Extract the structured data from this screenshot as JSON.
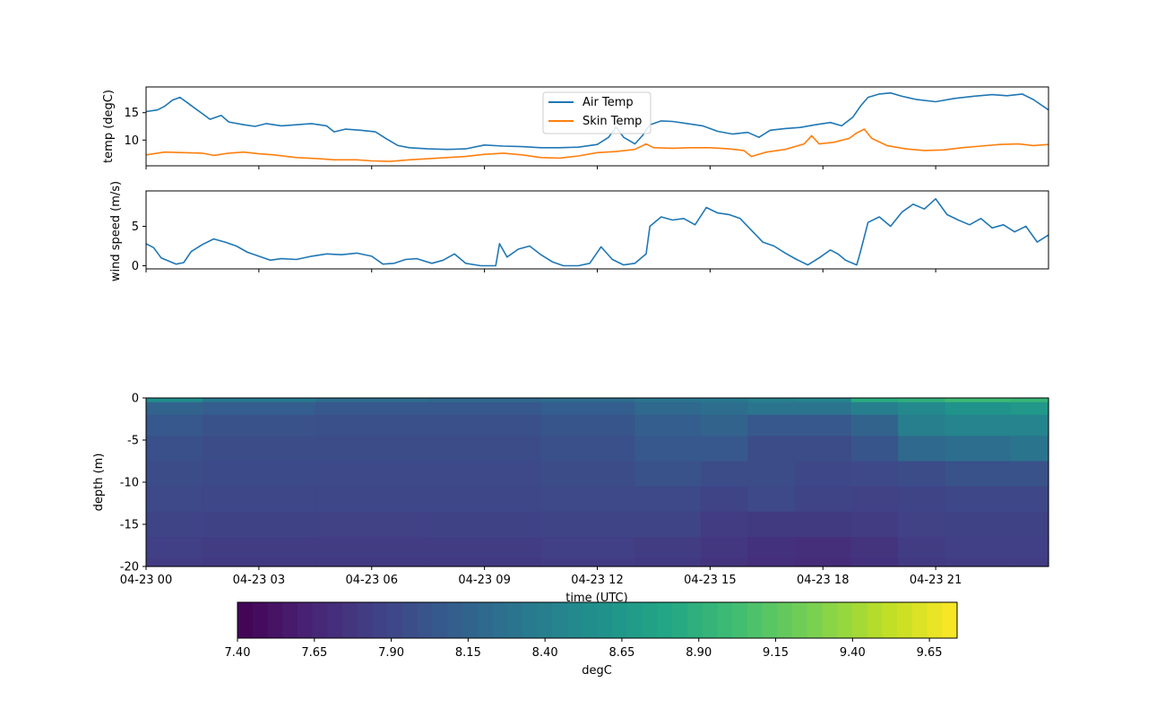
{
  "chart_data": [
    {
      "type": "line",
      "ylabel": "temp (degC)",
      "yticks": [
        10,
        15
      ],
      "ylim": [
        5.3,
        19.7
      ],
      "xlim": [
        0,
        24
      ],
      "series": [
        {
          "name": "Air Temp",
          "color": "#1f77b4",
          "points": [
            [
              0,
              15.2
            ],
            [
              0.3,
              15.5
            ],
            [
              0.5,
              16.2
            ],
            [
              0.7,
              17.3
            ],
            [
              0.9,
              17.8
            ],
            [
              1.1,
              16.8
            ],
            [
              1.3,
              15.8
            ],
            [
              1.5,
              14.8
            ],
            [
              1.7,
              13.8
            ],
            [
              2.0,
              14.5
            ],
            [
              2.2,
              13.3
            ],
            [
              2.6,
              12.8
            ],
            [
              2.9,
              12.5
            ],
            [
              3.2,
              13.0
            ],
            [
              3.6,
              12.6
            ],
            [
              4.0,
              12.8
            ],
            [
              4.4,
              13.0
            ],
            [
              4.8,
              12.6
            ],
            [
              5.0,
              11.5
            ],
            [
              5.3,
              12.0
            ],
            [
              5.7,
              11.8
            ],
            [
              6.1,
              11.5
            ],
            [
              6.4,
              10.2
            ],
            [
              6.7,
              9.0
            ],
            [
              7.0,
              8.6
            ],
            [
              7.5,
              8.4
            ],
            [
              8.0,
              8.3
            ],
            [
              8.5,
              8.4
            ],
            [
              9.0,
              9.1
            ],
            [
              9.5,
              8.9
            ],
            [
              10.0,
              8.8
            ],
            [
              10.5,
              8.6
            ],
            [
              11.0,
              8.6
            ],
            [
              11.5,
              8.7
            ],
            [
              12.0,
              9.2
            ],
            [
              12.3,
              10.5
            ],
            [
              12.5,
              12.4
            ],
            [
              12.7,
              10.5
            ],
            [
              13.0,
              9.3
            ],
            [
              13.2,
              10.8
            ],
            [
              13.4,
              12.8
            ],
            [
              13.7,
              13.5
            ],
            [
              14.0,
              13.4
            ],
            [
              14.4,
              13.0
            ],
            [
              14.8,
              12.6
            ],
            [
              15.2,
              11.6
            ],
            [
              15.6,
              11.1
            ],
            [
              16.0,
              11.4
            ],
            [
              16.3,
              10.5
            ],
            [
              16.6,
              11.8
            ],
            [
              17.0,
              12.1
            ],
            [
              17.4,
              12.3
            ],
            [
              17.8,
              12.8
            ],
            [
              18.2,
              13.2
            ],
            [
              18.5,
              12.6
            ],
            [
              18.8,
              14.2
            ],
            [
              19.0,
              16.2
            ],
            [
              19.2,
              17.8
            ],
            [
              19.5,
              18.4
            ],
            [
              19.8,
              18.6
            ],
            [
              20.1,
              18.0
            ],
            [
              20.5,
              17.4
            ],
            [
              21.0,
              17.0
            ],
            [
              21.5,
              17.6
            ],
            [
              22.0,
              18.0
            ],
            [
              22.5,
              18.3
            ],
            [
              22.9,
              18.1
            ],
            [
              23.3,
              18.4
            ],
            [
              23.6,
              17.4
            ],
            [
              24.0,
              15.5
            ]
          ]
        },
        {
          "name": "Skin Temp",
          "color": "#ff7f0e",
          "points": [
            [
              0,
              7.3
            ],
            [
              0.5,
              7.8
            ],
            [
              1.0,
              7.7
            ],
            [
              1.5,
              7.6
            ],
            [
              1.8,
              7.2
            ],
            [
              2.2,
              7.6
            ],
            [
              2.6,
              7.8
            ],
            [
              3.0,
              7.5
            ],
            [
              3.4,
              7.3
            ],
            [
              4.0,
              6.8
            ],
            [
              4.6,
              6.6
            ],
            [
              5.0,
              6.4
            ],
            [
              5.6,
              6.4
            ],
            [
              6.0,
              6.2
            ],
            [
              6.5,
              6.1
            ],
            [
              7.0,
              6.4
            ],
            [
              7.5,
              6.6
            ],
            [
              8.0,
              6.8
            ],
            [
              8.5,
              7.0
            ],
            [
              9.0,
              7.4
            ],
            [
              9.5,
              7.6
            ],
            [
              10.0,
              7.3
            ],
            [
              10.5,
              6.8
            ],
            [
              11.0,
              6.7
            ],
            [
              11.5,
              7.1
            ],
            [
              12.0,
              7.7
            ],
            [
              12.5,
              7.9
            ],
            [
              13.0,
              8.3
            ],
            [
              13.3,
              9.3
            ],
            [
              13.5,
              8.6
            ],
            [
              14.0,
              8.5
            ],
            [
              14.5,
              8.6
            ],
            [
              15.0,
              8.6
            ],
            [
              15.5,
              8.4
            ],
            [
              15.9,
              8.1
            ],
            [
              16.1,
              7.0
            ],
            [
              16.5,
              7.8
            ],
            [
              17.0,
              8.3
            ],
            [
              17.5,
              9.3
            ],
            [
              17.7,
              10.8
            ],
            [
              17.9,
              9.3
            ],
            [
              18.3,
              9.6
            ],
            [
              18.7,
              10.3
            ],
            [
              18.9,
              11.3
            ],
            [
              19.1,
              12.0
            ],
            [
              19.3,
              10.3
            ],
            [
              19.7,
              9.0
            ],
            [
              20.2,
              8.4
            ],
            [
              20.7,
              8.1
            ],
            [
              21.2,
              8.2
            ],
            [
              21.7,
              8.6
            ],
            [
              22.2,
              8.9
            ],
            [
              22.7,
              9.2
            ],
            [
              23.2,
              9.3
            ],
            [
              23.6,
              9.0
            ],
            [
              24.0,
              9.2
            ]
          ]
        }
      ]
    },
    {
      "type": "line",
      "ylabel": "wind speed (m/s)",
      "yticks": [
        0,
        5
      ],
      "ylim": [
        -0.4,
        9.5
      ],
      "xlim": [
        0,
        24
      ],
      "series": [
        {
          "color": "#1f77b4",
          "points": [
            [
              0,
              2.8
            ],
            [
              0.2,
              2.3
            ],
            [
              0.4,
              1.0
            ],
            [
              0.6,
              0.6
            ],
            [
              0.8,
              0.2
            ],
            [
              1.0,
              0.4
            ],
            [
              1.2,
              1.8
            ],
            [
              1.5,
              2.7
            ],
            [
              1.8,
              3.4
            ],
            [
              2.1,
              3.0
            ],
            [
              2.4,
              2.5
            ],
            [
              2.7,
              1.7
            ],
            [
              3.0,
              1.2
            ],
            [
              3.3,
              0.7
            ],
            [
              3.6,
              0.9
            ],
            [
              4.0,
              0.8
            ],
            [
              4.4,
              1.2
            ],
            [
              4.8,
              1.5
            ],
            [
              5.2,
              1.4
            ],
            [
              5.6,
              1.6
            ],
            [
              6.0,
              1.2
            ],
            [
              6.3,
              0.2
            ],
            [
              6.6,
              0.3
            ],
            [
              6.9,
              0.8
            ],
            [
              7.2,
              0.9
            ],
            [
              7.6,
              0.3
            ],
            [
              7.9,
              0.7
            ],
            [
              8.2,
              1.5
            ],
            [
              8.5,
              0.3
            ],
            [
              8.9,
              0.0
            ],
            [
              9.3,
              0.0
            ],
            [
              9.4,
              2.8
            ],
            [
              9.6,
              1.1
            ],
            [
              9.9,
              2.1
            ],
            [
              10.2,
              2.5
            ],
            [
              10.5,
              1.4
            ],
            [
              10.8,
              0.5
            ],
            [
              11.1,
              0.0
            ],
            [
              11.5,
              0.0
            ],
            [
              11.8,
              0.3
            ],
            [
              12.1,
              2.4
            ],
            [
              12.4,
              0.8
            ],
            [
              12.7,
              0.1
            ],
            [
              13.0,
              0.3
            ],
            [
              13.3,
              1.5
            ],
            [
              13.4,
              5.0
            ],
            [
              13.7,
              6.2
            ],
            [
              14.0,
              5.8
            ],
            [
              14.3,
              6.0
            ],
            [
              14.6,
              5.2
            ],
            [
              14.9,
              7.4
            ],
            [
              15.2,
              6.7
            ],
            [
              15.5,
              6.5
            ],
            [
              15.8,
              6.0
            ],
            [
              16.1,
              4.5
            ],
            [
              16.4,
              3.0
            ],
            [
              16.7,
              2.5
            ],
            [
              17.0,
              1.6
            ],
            [
              17.3,
              0.8
            ],
            [
              17.6,
              0.1
            ],
            [
              17.9,
              1.0
            ],
            [
              18.2,
              2.0
            ],
            [
              18.4,
              1.5
            ],
            [
              18.6,
              0.7
            ],
            [
              18.9,
              0.1
            ],
            [
              19.0,
              1.8
            ],
            [
              19.2,
              5.5
            ],
            [
              19.5,
              6.2
            ],
            [
              19.8,
              5.0
            ],
            [
              20.1,
              6.8
            ],
            [
              20.4,
              7.8
            ],
            [
              20.7,
              7.2
            ],
            [
              21.0,
              8.5
            ],
            [
              21.3,
              6.5
            ],
            [
              21.6,
              5.8
            ],
            [
              21.9,
              5.2
            ],
            [
              22.2,
              6.0
            ],
            [
              22.5,
              4.8
            ],
            [
              22.8,
              5.2
            ],
            [
              23.1,
              4.3
            ],
            [
              23.4,
              5.0
            ],
            [
              23.7,
              3.0
            ],
            [
              24.0,
              3.9
            ]
          ]
        }
      ]
    },
    {
      "type": "heatmap",
      "ylabel": "depth (m)",
      "xlabel": "time (UTC)",
      "yticks": [
        0,
        -5,
        -10,
        -15,
        -20
      ],
      "ylim": [
        -20,
        0
      ],
      "xlim": [
        0,
        24
      ],
      "xticks": [
        0,
        3,
        6,
        9,
        12,
        15,
        18,
        21
      ],
      "xticklabels": [
        "04-23 00",
        "04-23 03",
        "04-23 06",
        "04-23 09",
        "04-23 12",
        "04-23 15",
        "04-23 18",
        "04-23 21"
      ],
      "colormap": "viridis",
      "colorbar": {
        "label": "degC",
        "range": [
          7.4,
          9.74
        ],
        "ticks": [
          7.4,
          7.65,
          7.9,
          8.15,
          8.4,
          8.65,
          8.9,
          9.15,
          9.4,
          9.65
        ],
        "ticklabels": [
          "7.40",
          "7.65",
          "7.90",
          "8.15",
          "8.40",
          "8.65",
          "8.90",
          "9.15",
          "9.40",
          "9.65"
        ]
      },
      "time_hours": [
        0,
        3,
        6,
        9,
        12,
        14,
        15.5,
        16.5,
        18,
        19.5,
        20.5,
        22,
        24
      ],
      "depth_m": [
        0,
        -1,
        -3,
        -6,
        -9,
        -12,
        -15,
        -18,
        -20
      ],
      "values_degC": [
        [
          8.55,
          8.35,
          8.25,
          8.2,
          8.25,
          8.3,
          8.35,
          8.4,
          8.45,
          8.85,
          8.9,
          9.0,
          8.95
        ],
        [
          8.15,
          8.1,
          8.05,
          8.05,
          8.1,
          8.2,
          8.25,
          8.3,
          8.3,
          8.4,
          8.5,
          8.6,
          8.65
        ],
        [
          8.05,
          8.0,
          7.98,
          7.98,
          8.02,
          8.1,
          8.15,
          8.05,
          8.05,
          8.15,
          8.4,
          8.45,
          8.45
        ],
        [
          7.98,
          7.95,
          7.95,
          7.95,
          7.98,
          8.05,
          8.05,
          7.95,
          7.95,
          8.02,
          8.2,
          8.25,
          8.3
        ],
        [
          7.95,
          7.93,
          7.92,
          7.92,
          7.95,
          8.0,
          7.95,
          7.95,
          7.9,
          7.92,
          7.95,
          8.0,
          8.0
        ],
        [
          7.92,
          7.9,
          7.9,
          7.9,
          7.92,
          7.92,
          7.88,
          7.92,
          7.88,
          7.85,
          7.88,
          7.9,
          7.9
        ],
        [
          7.88,
          7.86,
          7.85,
          7.86,
          7.88,
          7.88,
          7.82,
          7.8,
          7.8,
          7.82,
          7.85,
          7.86,
          7.86
        ],
        [
          7.84,
          7.82,
          7.82,
          7.82,
          7.84,
          7.82,
          7.78,
          7.74,
          7.72,
          7.76,
          7.82,
          7.84,
          7.84
        ],
        [
          7.82,
          7.8,
          7.8,
          7.8,
          7.82,
          7.8,
          7.76,
          7.72,
          7.7,
          7.74,
          7.8,
          7.82,
          7.82
        ]
      ]
    }
  ]
}
